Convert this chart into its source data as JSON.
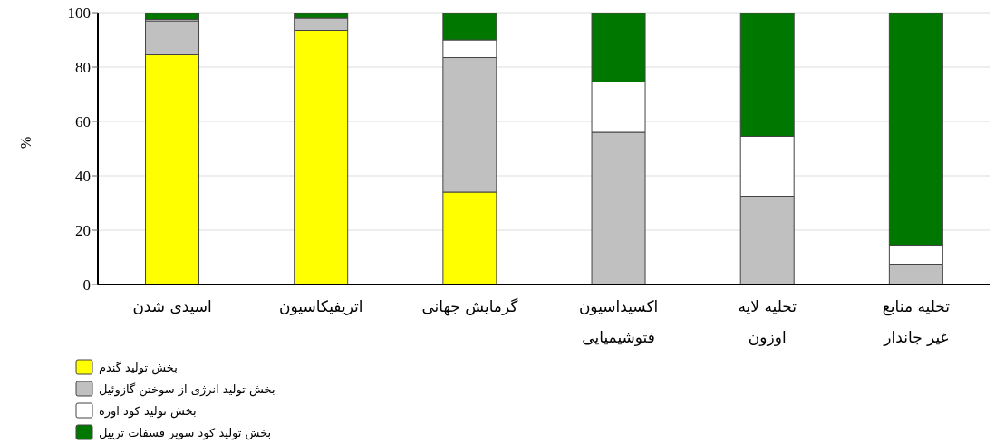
{
  "chart_data": {
    "type": "bar",
    "stacked": true,
    "ylabel": "%",
    "categories": [
      "اسیدی شدن",
      "اتریفیکاسیون",
      "گرمایش جهانی",
      "اکسیداسیون فتوشیمیایی",
      "تخلیه لایه اوزون",
      "تخلیه منابع غیر جاندار"
    ],
    "series": [
      {
        "name": "بخش تولید گندم",
        "color": "#ffff00",
        "values": [
          84.5,
          93.5,
          34,
          0,
          0,
          0
        ]
      },
      {
        "name": "بخش تولید انرژی از سوختن گازوئیل",
        "color": "#c0c0c0",
        "values": [
          12.5,
          4.5,
          49.5,
          56,
          32.5,
          7.5
        ]
      },
      {
        "name": "بخش تولید کود اوره",
        "color": "#ffffff",
        "values": [
          0.5,
          0,
          6.5,
          18.5,
          22,
          7
        ]
      },
      {
        "name": "بخش تولید کود سوپر فسفات تریپل",
        "color": "#007800",
        "values": [
          2.5,
          2,
          10,
          25.5,
          45.5,
          85.5
        ]
      }
    ],
    "ylim": [
      0,
      100
    ],
    "yticks": [
      0,
      20,
      40,
      60,
      80,
      100
    ],
    "grid": "y",
    "legend": "bottom left"
  }
}
